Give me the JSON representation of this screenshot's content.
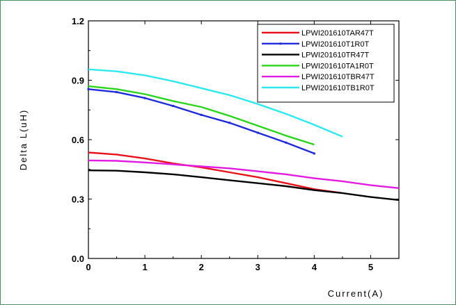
{
  "chart_data": {
    "type": "line",
    "xlabel": "Current(A)",
    "ylabel": "Delta L(uH)",
    "xlim": [
      0,
      5.5
    ],
    "ylim": [
      0,
      1.2
    ],
    "xticks": [
      "0",
      "1",
      "2",
      "3",
      "4",
      "5"
    ],
    "yticks": [
      "0.0",
      "0.3",
      "0.6",
      "0.9",
      "1.2"
    ],
    "grid": false,
    "legend_position": "top-right",
    "series": [
      {
        "name": "LPWI201610TAR47T",
        "color": "#e8121b",
        "x": [
          0,
          0.5,
          1,
          1.5,
          2,
          2.5,
          3,
          3.5,
          4,
          4.5
        ],
        "y": [
          0.535,
          0.525,
          0.505,
          0.48,
          0.46,
          0.435,
          0.41,
          0.38,
          0.35,
          0.33
        ]
      },
      {
        "name": "LPWI201610T1R0T",
        "color": "#1f2bd8",
        "markers": true,
        "x": [
          0,
          0.5,
          1,
          1.5,
          2,
          2.5,
          3,
          3.5,
          4
        ],
        "y": [
          0.855,
          0.84,
          0.81,
          0.77,
          0.725,
          0.685,
          0.635,
          0.585,
          0.53
        ]
      },
      {
        "name": "LPWI201610TR47T",
        "color": "#000000",
        "x": [
          0,
          0.5,
          1,
          1.5,
          2,
          2.5,
          3,
          3.5,
          4,
          4.5,
          5,
          5.5
        ],
        "y": [
          0.445,
          0.443,
          0.435,
          0.425,
          0.41,
          0.395,
          0.38,
          0.365,
          0.345,
          0.33,
          0.31,
          0.295
        ]
      },
      {
        "name": "LPWI201610TA1R0T",
        "color": "#2ad41c",
        "x": [
          0,
          0.5,
          1,
          1.5,
          2,
          2.5,
          3,
          3.5,
          4
        ],
        "y": [
          0.87,
          0.855,
          0.83,
          0.795,
          0.765,
          0.72,
          0.67,
          0.62,
          0.575
        ]
      },
      {
        "name": "LPWI201610TBR47T",
        "color": "#e21be0",
        "x": [
          0,
          0.5,
          1,
          1.5,
          2,
          2.5,
          3,
          3.5,
          4,
          4.5,
          5,
          5.5
        ],
        "y": [
          0.495,
          0.493,
          0.485,
          0.475,
          0.465,
          0.455,
          0.44,
          0.425,
          0.405,
          0.39,
          0.37,
          0.355
        ]
      },
      {
        "name": "LPWI201610TB1R0T",
        "color": "#2ee8ee",
        "x": [
          0,
          0.5,
          1,
          1.5,
          2,
          2.5,
          3,
          3.5,
          4,
          4.5
        ],
        "y": [
          0.955,
          0.945,
          0.925,
          0.895,
          0.86,
          0.825,
          0.78,
          0.73,
          0.675,
          0.615
        ]
      }
    ]
  }
}
